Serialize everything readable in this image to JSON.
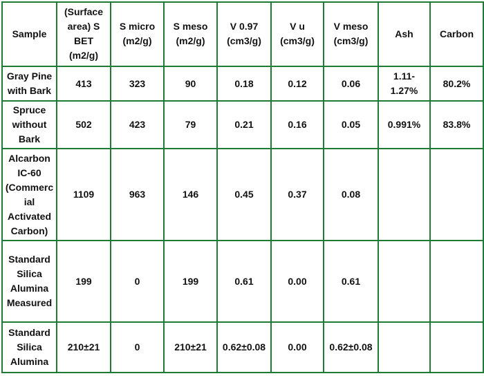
{
  "table": {
    "headers": [
      "Sample",
      "(Surface area) S BET (m2/g)",
      "S micro (m2/g)",
      "S meso (m2/g)",
      "V 0.97 (cm3/g)",
      "V u (cm3/g)",
      "V meso (cm3/g)",
      "Ash",
      "Carbon"
    ],
    "rows": [
      [
        "Gray Pine with Bark",
        "413",
        "323",
        "90",
        "0.18",
        "0.12",
        "0.06",
        "1.11-1.27%",
        "80.2%"
      ],
      [
        "Spruce without Bark",
        "502",
        "423",
        "79",
        "0.21",
        "0.16",
        "0.05",
        "0.991%",
        "83.8%"
      ],
      [
        "Alcarbon IC-60 (Commercial Activated Carbon)",
        "1109",
        "963",
        "146",
        "0.45",
        "0.37",
        "0.08",
        "",
        ""
      ],
      [
        "Standard Silica Alumina Measured",
        "199",
        "0",
        "199",
        "0.61",
        "0.00",
        "0.61",
        "",
        ""
      ],
      [
        "Standard Silica Alumina",
        "210±21",
        "0",
        "210±21",
        "0.62±0.08",
        "0.00",
        "0.62±0.08",
        "",
        ""
      ]
    ]
  },
  "colors": {
    "border": "#1e7b34",
    "text": "#111111",
    "background": "#ffffff"
  }
}
